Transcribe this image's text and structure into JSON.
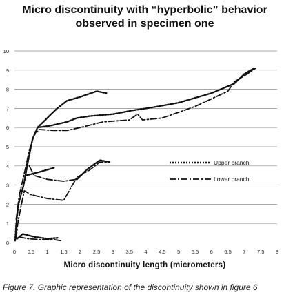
{
  "chart_data": {
    "type": "line",
    "title_line1": "Micro discontinuity with “hyperbolic” behavior",
    "title_line2": "observed in specimen one",
    "xlabel": "Micro discontinuity length (micrometers)",
    "ylabel": "",
    "xlim": [
      0,
      8
    ],
    "ylim": [
      0,
      10
    ],
    "x_ticks": [
      "0",
      "0.5",
      "1",
      "1.5",
      "2",
      "2.5",
      "3",
      "3.5",
      "4",
      "4.5",
      "5",
      "5.5",
      "6",
      "6.5",
      "7",
      "7.5",
      "8"
    ],
    "y_ticks": [
      "0",
      "1",
      "2",
      "3",
      "4",
      "5",
      "6",
      "7",
      "8",
      "9",
      "10"
    ],
    "grid": "horizontal",
    "legend_position": "right",
    "series": [
      {
        "name": "Upper branch",
        "style": "dotted",
        "segments": [
          [
            [
              0.02,
              0.1
            ],
            [
              0.05,
              0.9
            ],
            [
              0.12,
              2.0
            ],
            [
              0.28,
              3.0
            ],
            [
              0.42,
              4.3
            ],
            [
              0.55,
              5.4
            ],
            [
              0.7,
              6.0
            ],
            [
              1.0,
              6.5
            ],
            [
              1.3,
              7.0
            ],
            [
              1.6,
              7.4
            ],
            [
              2.0,
              7.6
            ],
            [
              2.5,
              7.9
            ],
            [
              2.8,
              7.8
            ]
          ],
          [
            [
              0.7,
              6.0
            ],
            [
              1.1,
              6.1
            ],
            [
              1.6,
              6.3
            ],
            [
              1.9,
              6.5
            ],
            [
              2.3,
              6.6
            ],
            [
              3.0,
              6.7
            ],
            [
              3.6,
              6.9
            ],
            [
              4.2,
              7.05
            ],
            [
              5.0,
              7.3
            ],
            [
              6.0,
              7.8
            ],
            [
              6.7,
              8.3
            ],
            [
              7.0,
              8.8
            ],
            [
              7.3,
              9.1
            ]
          ],
          [
            [
              0.08,
              0.2
            ],
            [
              0.25,
              0.45
            ],
            [
              0.6,
              0.3
            ],
            [
              1.0,
              0.2
            ],
            [
              1.35,
              0.25
            ]
          ],
          [
            [
              0.35,
              3.5
            ],
            [
              0.8,
              3.7
            ],
            [
              1.2,
              3.9
            ]
          ],
          [
            [
              1.9,
              3.3
            ],
            [
              2.2,
              3.8
            ],
            [
              2.6,
              4.3
            ],
            [
              2.9,
              4.2
            ]
          ]
        ]
      },
      {
        "name": "Lower branch",
        "style": "dash-dot",
        "segments": [
          [
            [
              0.05,
              0.2
            ],
            [
              0.1,
              1.0
            ],
            [
              0.2,
              1.9
            ],
            [
              0.3,
              2.7
            ],
            [
              0.5,
              2.5
            ],
            [
              1.0,
              2.3
            ],
            [
              1.5,
              2.2
            ],
            [
              1.9,
              3.4
            ],
            [
              2.3,
              3.8
            ],
            [
              2.6,
              4.2
            ],
            [
              2.9,
              4.2
            ]
          ],
          [
            [
              0.15,
              0.3
            ],
            [
              0.4,
              0.2
            ],
            [
              0.8,
              0.15
            ],
            [
              1.2,
              0.15
            ],
            [
              1.4,
              0.1
            ]
          ],
          [
            [
              0.45,
              4.0
            ],
            [
              0.6,
              3.5
            ],
            [
              1.0,
              3.3
            ],
            [
              1.5,
              3.2
            ],
            [
              1.9,
              3.3
            ]
          ],
          [
            [
              0.75,
              5.9
            ],
            [
              1.2,
              5.85
            ],
            [
              1.6,
              5.85
            ],
            [
              2.0,
              6.0
            ],
            [
              2.7,
              6.3
            ],
            [
              3.5,
              6.4
            ],
            [
              3.75,
              6.7
            ],
            [
              3.9,
              6.4
            ],
            [
              4.5,
              6.5
            ],
            [
              5.0,
              6.8
            ],
            [
              5.5,
              7.1
            ],
            [
              6.0,
              7.5
            ],
            [
              6.5,
              7.9
            ],
            [
              6.7,
              8.4
            ],
            [
              7.0,
              8.7
            ],
            [
              7.35,
              9.1
            ]
          ],
          [
            [
              0.05,
              1.2
            ],
            [
              0.15,
              2.5
            ],
            [
              0.3,
              3.6
            ],
            [
              0.45,
              4.8
            ],
            [
              0.6,
              5.6
            ],
            [
              0.75,
              5.9
            ]
          ]
        ]
      }
    ]
  },
  "caption": "Figure 7. Graphic representation of the discontinuity shown in figure 6"
}
